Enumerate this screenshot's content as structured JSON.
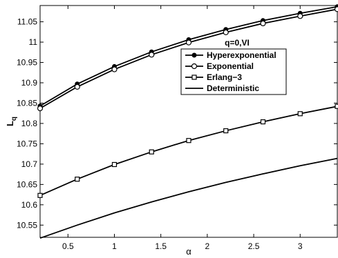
{
  "chart_data": {
    "type": "line",
    "title": "",
    "xlabel": "α",
    "ylabel": "L_q",
    "xlim": [
      0.2,
      3.4
    ],
    "ylim": [
      10.52,
      11.09
    ],
    "xticks": [
      0.5,
      1,
      1.5,
      2,
      2.5,
      3
    ],
    "xtick_labels": [
      "0.5",
      "1",
      "1.5",
      "2",
      "2.5",
      "3"
    ],
    "yticks": [
      10.55,
      10.6,
      10.65,
      10.7,
      10.75,
      10.8,
      10.85,
      10.9,
      10.95,
      11,
      11.05
    ],
    "ytick_labels": [
      "10.55",
      "10.6",
      "10.65",
      "10.7",
      "10.75",
      "10.8",
      "10.85",
      "10.9",
      "10.95",
      "11",
      "11.05"
    ],
    "grid": false,
    "legend_position": "upper-right",
    "annotation": "q=0,VI",
    "series": [
      {
        "name": "Hyperexponential",
        "marker": "dot",
        "x": [
          0.2,
          0.6,
          1.0,
          1.4,
          1.8,
          2.2,
          2.6,
          3.0,
          3.4
        ],
        "y": [
          10.843,
          10.897,
          10.94,
          10.976,
          11.006,
          11.031,
          11.053,
          11.071,
          11.087
        ]
      },
      {
        "name": "Exponential",
        "marker": "circle",
        "x": [
          0.2,
          0.6,
          1.0,
          1.4,
          1.8,
          2.2,
          2.6,
          3.0,
          3.4
        ],
        "y": [
          10.837,
          10.89,
          10.933,
          10.969,
          10.999,
          11.024,
          11.046,
          11.064,
          11.081
        ]
      },
      {
        "name": "Erlang−3",
        "marker": "square",
        "x": [
          0.2,
          0.6,
          1.0,
          1.4,
          1.8,
          2.2,
          2.6,
          3.0,
          3.4
        ],
        "y": [
          10.623,
          10.663,
          10.699,
          10.73,
          10.758,
          10.782,
          10.804,
          10.824,
          10.842
        ]
      },
      {
        "name": "Deterministic",
        "marker": "none",
        "x": [
          0.2,
          0.6,
          1.0,
          1.4,
          1.8,
          2.2,
          2.6,
          3.0,
          3.4
        ],
        "y": [
          10.518,
          10.55,
          10.58,
          10.607,
          10.632,
          10.655,
          10.676,
          10.696,
          10.714
        ]
      }
    ]
  }
}
